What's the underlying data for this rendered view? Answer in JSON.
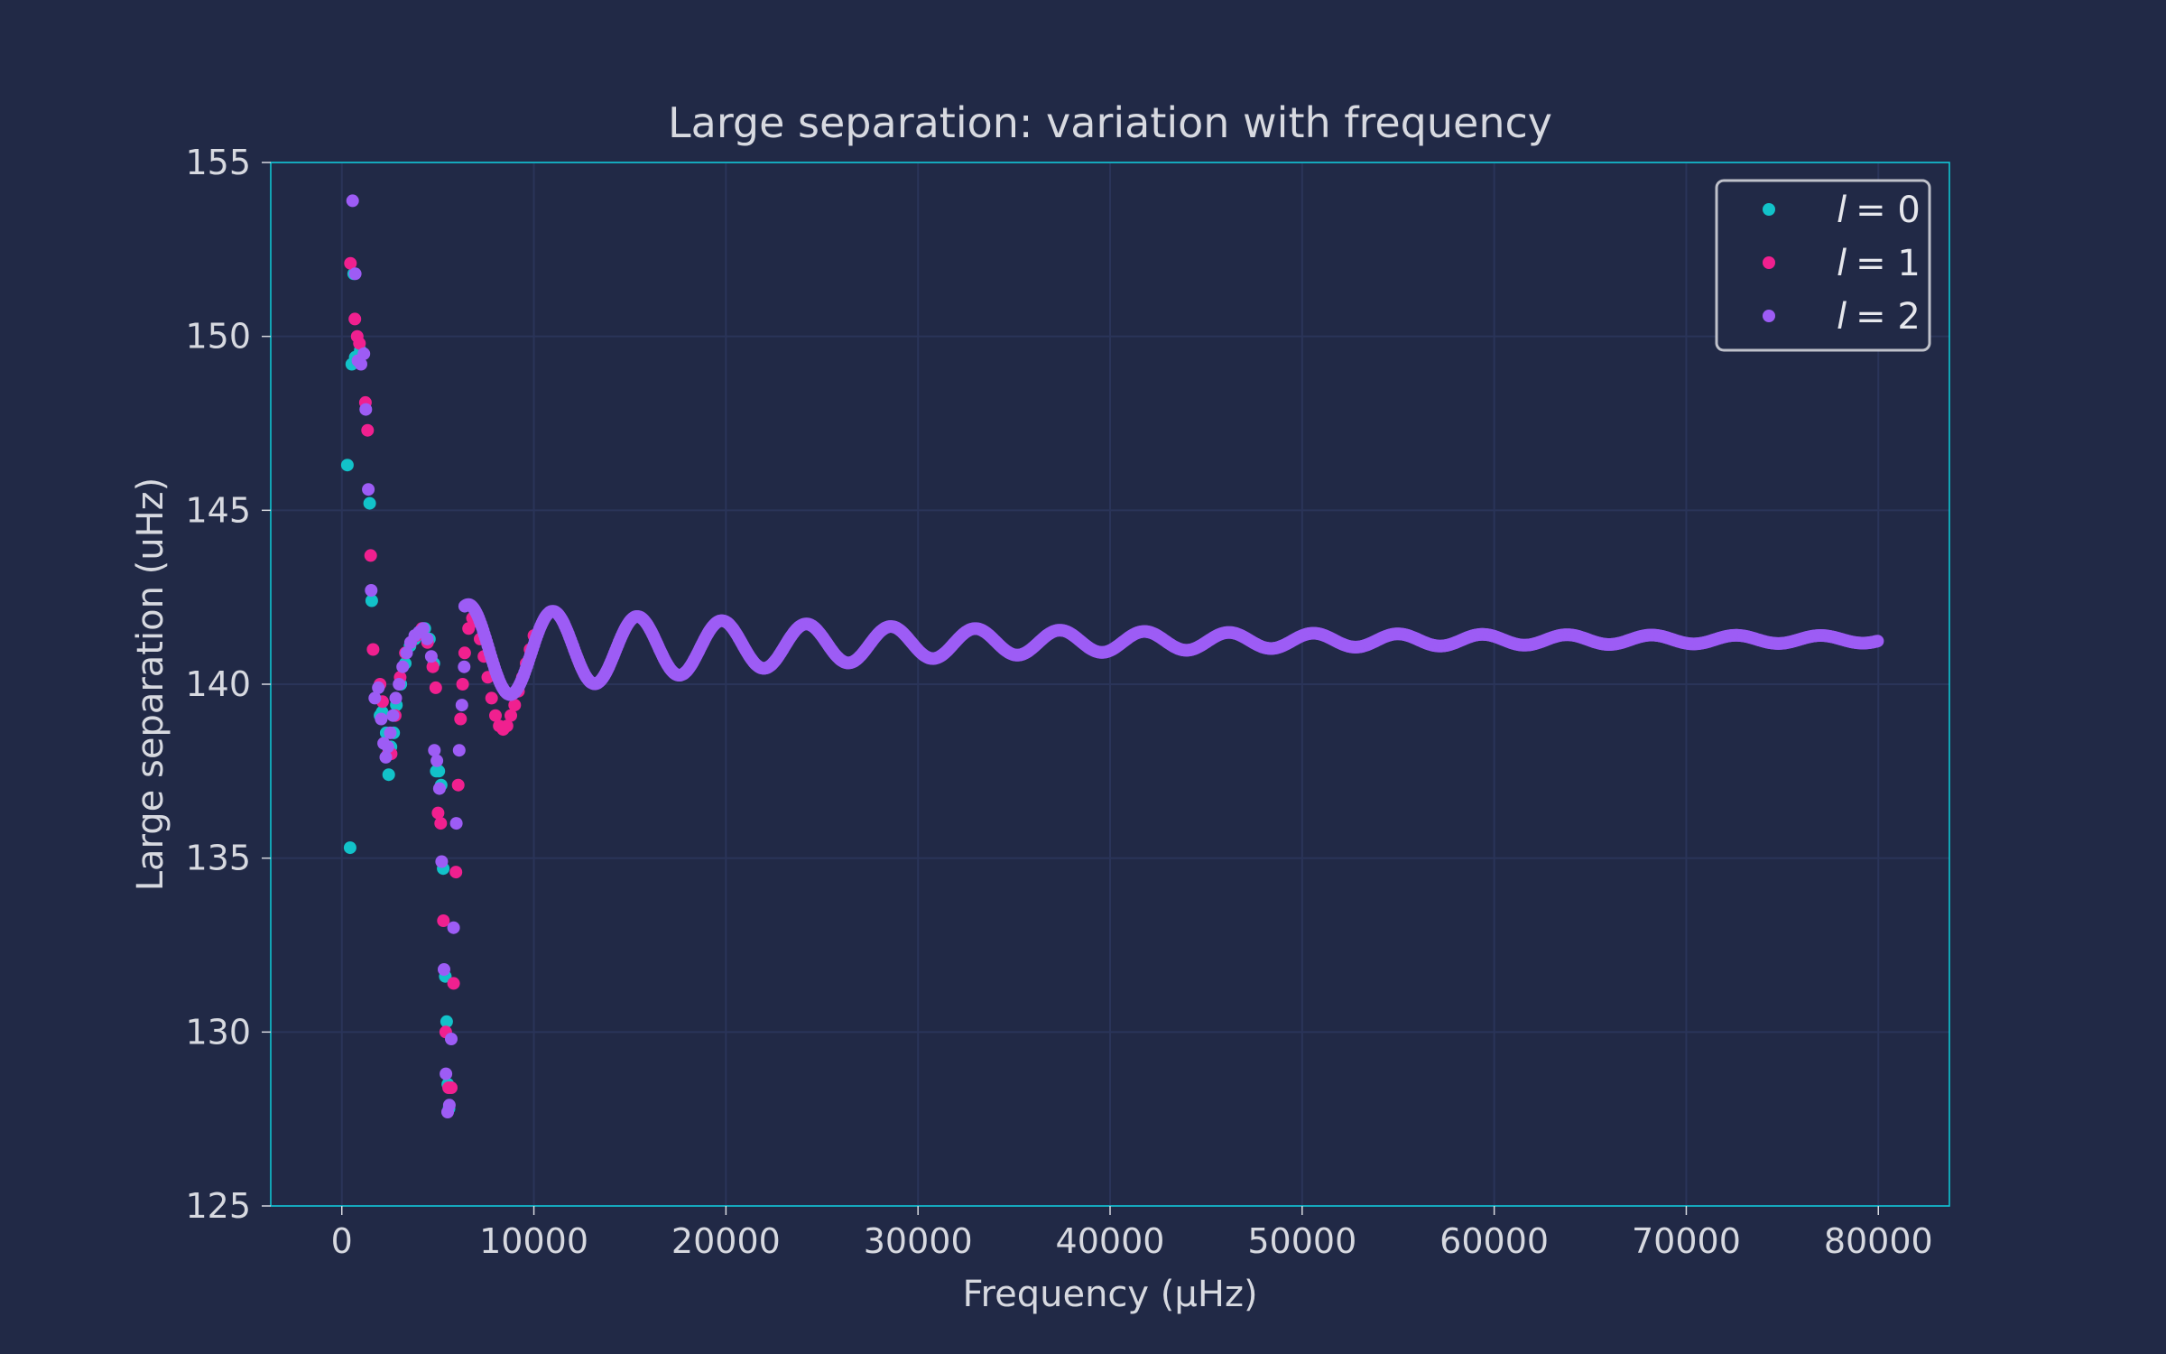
{
  "chart_data": {
    "type": "scatter",
    "title": "Large separation: variation with frequency",
    "xlabel": "Frequency (μHz)",
    "ylabel": "Large separation (uHz)",
    "xlim": [
      -3700,
      83700
    ],
    "ylim": [
      125,
      155
    ],
    "x_ticks": [
      0,
      10000,
      20000,
      30000,
      40000,
      50000,
      60000,
      70000,
      80000
    ],
    "y_ticks": [
      125,
      130,
      135,
      140,
      145,
      150,
      155
    ],
    "grid": true,
    "legend_position": "top-right",
    "colors": {
      "background": "#212946",
      "grid": "#2A3459",
      "frame": "#08F7FE"
    },
    "series": [
      {
        "name": "l = 0",
        "legend_symbol": "l",
        "legend_value": "= 0",
        "color": "#12c2c9",
        "x": [
          290,
          430,
          520,
          620,
          700,
          780,
          860,
          960,
          1450,
          1560,
          1990,
          2100,
          2310,
          2440,
          2560,
          2700,
          2840,
          3070,
          3300,
          3550,
          3800,
          4060,
          4320,
          4560,
          4790,
          4920,
          5050,
          5170,
          5280,
          5390,
          5460,
          5520,
          5580
        ],
        "y": [
          146.3,
          135.3,
          149.2,
          151.8,
          149.4,
          149.4,
          149.3,
          149.6,
          145.2,
          142.4,
          139.1,
          139.2,
          138.6,
          137.4,
          138.2,
          138.6,
          139.4,
          140.0,
          140.6,
          141.1,
          141.3,
          141.5,
          141.6,
          141.3,
          140.6,
          137.5,
          137.5,
          137.1,
          134.7,
          131.6,
          130.3,
          128.5,
          127.8
        ]
      },
      {
        "name": "l = 1",
        "legend_symbol": "l",
        "legend_value": "= 1",
        "color": "#f0208f",
        "x": [
          450,
          680,
          800,
          920,
          1230,
          1340,
          1500,
          1630,
          1990,
          2120,
          2410,
          2570,
          2780,
          3040,
          3310,
          3590,
          3880,
          4170,
          4460,
          4740,
          4890,
          5010,
          5150,
          5290,
          5410,
          5560,
          5700,
          5820,
          5940,
          6060,
          6180,
          6290,
          6400,
          6600,
          6800,
          7000,
          7200,
          7400,
          7600,
          7800,
          8000,
          8200,
          8400,
          8600,
          8800,
          9000,
          9200,
          9400,
          9600,
          9800,
          10000
        ],
        "y": [
          152.1,
          150.5,
          150.0,
          149.8,
          148.1,
          147.3,
          143.7,
          141.0,
          140.0,
          139.5,
          138.0,
          138.0,
          139.1,
          140.2,
          140.9,
          141.2,
          141.4,
          141.6,
          141.2,
          140.5,
          139.9,
          136.3,
          136.0,
          133.2,
          130.0,
          128.4,
          128.4,
          131.4,
          134.6,
          137.1,
          139.0,
          140.0,
          140.9,
          141.6,
          141.9,
          141.8,
          141.3,
          140.8,
          140.2,
          139.6,
          139.1,
          138.8,
          138.7,
          138.8,
          139.1,
          139.4,
          139.8,
          140.2,
          140.6,
          141.0,
          141.4
        ]
      },
      {
        "name": "l = 2",
        "legend_symbol": "l",
        "legend_value": "= 2",
        "color": "#9d5cf5",
        "x": [
          560,
          700,
          840,
          1000,
          1150,
          1250,
          1380,
          1530,
          1720,
          1900,
          2050,
          2180,
          2290,
          2400,
          2520,
          2660,
          2810,
          2980,
          3170,
          3370,
          3580,
          3800,
          4020,
          4240,
          4450,
          4660,
          4820,
          4950,
          5080,
          5200,
          5320,
          5420,
          5510,
          5600,
          5700,
          5820,
          5960,
          6110,
          6250,
          6370
        ],
        "y": [
          153.9,
          151.8,
          149.3,
          149.2,
          149.5,
          147.9,
          145.6,
          142.7,
          139.6,
          139.9,
          139.0,
          138.3,
          137.9,
          138.2,
          138.6,
          139.1,
          139.6,
          140.0,
          140.5,
          140.9,
          141.2,
          141.4,
          141.5,
          141.6,
          141.3,
          140.8,
          138.1,
          137.8,
          137.0,
          134.9,
          131.8,
          128.8,
          127.7,
          127.9,
          129.8,
          133.0,
          136.0,
          138.1,
          139.4,
          140.5
        ]
      }
    ],
    "oscillatory_trend": {
      "description": "dense l = 2 curve (densely sampled), damped oscillation around a slowly varying mean",
      "series_name": "l = 2",
      "x_start": 6400,
      "x_end": 80000,
      "x_step": 60,
      "start_frequency": 6400,
      "mean_start": 140.9,
      "mean_end": 141.3,
      "mean_decay_scale": 20000,
      "amplitude_start": 1.4,
      "amplitude_end": 0.08,
      "amplitude_decay_scale": 19000,
      "period": 4400,
      "phase_reference": 2200
    }
  }
}
